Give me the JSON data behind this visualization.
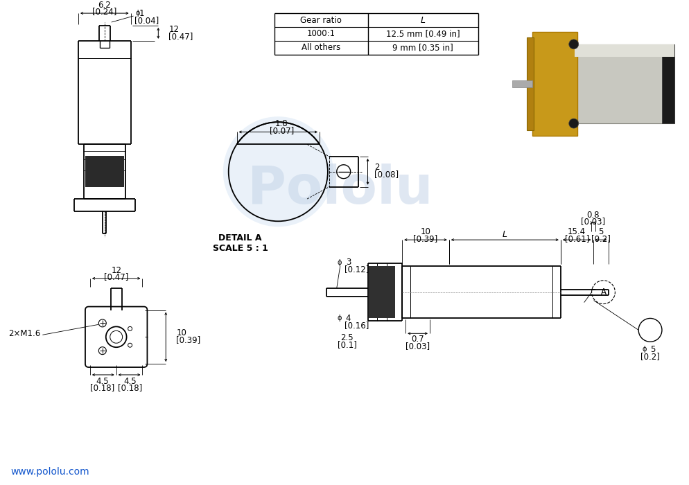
{
  "bg_color": "#ffffff",
  "text_color": "#000000",
  "blue_color": "#1155cc",
  "line_color": "#000000",
  "detail_bg": "#dce9f5",
  "watermark_color": "#c5d5e8",
  "table": {
    "col1": "Gear ratio",
    "col2": "L",
    "row1_c1": "1000:1",
    "row1_c2": "12.5 mm [0.49 in]",
    "row2_c1": "All others",
    "row2_c2": "9 mm [0.35 in]"
  },
  "url": "www.pololu.com",
  "detail_label": "DETAIL A\nSCALE 5 : 1",
  "label_2xM16": "2×M1.6",
  "dims": {
    "phi1": "1",
    "phi1_inch": "[0.04]",
    "w62": "6.2",
    "w62_inch": "[0.24]",
    "w12_top": "12",
    "w12_top_inch": "[0.47]",
    "w18": "1.8",
    "w18_inch": "[0.07]",
    "d2": "2",
    "d2_inch": "[0.08]",
    "w12_bot": "12",
    "w12_bot_inch": "[0.47]",
    "h10_bot": "10",
    "h10_bot_inch": "[0.39]",
    "w45_left": "4.5",
    "w45_left_inch": "[0.18]",
    "w45_right": "4.5",
    "w45_right_inch": "[0.18]",
    "phi3": "3",
    "phi3_inch": "[0.12]",
    "phi4": "4",
    "phi4_inch": "[0.16]",
    "h25": "2.5",
    "h25_inch": "[0.1]",
    "w10": "10",
    "w10_inch": "[0.39]",
    "L_label": "L",
    "w154": "15.4",
    "w154_inch": "[0.61]",
    "w5": "5",
    "w5_inch": "[0.2]",
    "w08": "0.8",
    "w08_inch": "[0.03]",
    "w07": "0.7",
    "w07_inch": "[0.03]",
    "phi5": "5",
    "phi5_inch": "[0.2]"
  }
}
